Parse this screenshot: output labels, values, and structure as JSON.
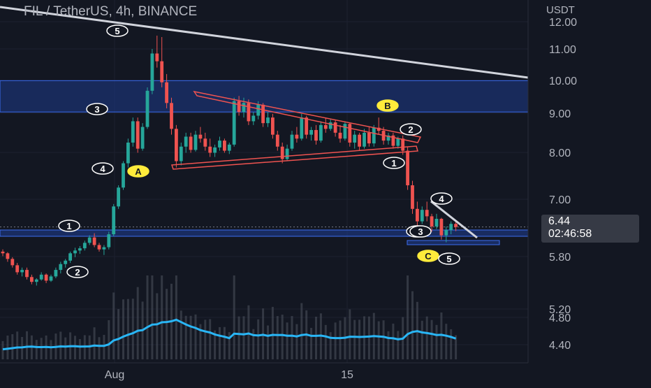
{
  "header": {
    "title": "FIL / TetherUS, 4h, BINANCE",
    "currency": "USDT"
  },
  "price_tag": {
    "price": "6.44",
    "countdown": "02:46:58"
  },
  "colors": {
    "background": "#131722",
    "up": "#26a69a",
    "down": "#ef5350",
    "volume_ma": "#29b6f6",
    "zone": "#1e3a8a",
    "annotation": "#ffffff"
  },
  "chart_data": {
    "type": "candlestick",
    "title": "FIL / TetherUS, 4h, BINANCE",
    "x_tick_labels": [
      "Aug",
      "15"
    ],
    "y_tick_labels": [
      "12.00",
      "11.00",
      "10.00",
      "9.00",
      "8.00",
      "7.00",
      "5.80",
      "5.20",
      "4.80",
      "4.40"
    ],
    "y_scale": "log",
    "last_price": 6.44,
    "resistance_zone": [
      9.1,
      10.0
    ],
    "support_zone": [
      6.2,
      6.32
    ],
    "wave_labels": [
      "1",
      "2",
      "3",
      "4",
      "5",
      "A",
      "3",
      "B",
      "2",
      "1",
      "4",
      "3",
      "C",
      "5"
    ],
    "series": [
      {
        "values": [
          [
            5.98,
            6.02,
            5.9,
            5.95
          ],
          [
            5.95,
            5.97,
            5.8,
            5.85
          ],
          [
            5.85,
            5.88,
            5.7,
            5.74
          ],
          [
            5.74,
            5.78,
            5.58,
            5.62
          ],
          [
            5.62,
            5.7,
            5.55,
            5.66
          ],
          [
            5.66,
            5.7,
            5.5,
            5.54
          ],
          [
            5.54,
            5.58,
            5.42,
            5.46
          ],
          [
            5.46,
            5.52,
            5.4,
            5.5
          ],
          [
            5.5,
            5.62,
            5.48,
            5.58
          ],
          [
            5.58,
            5.6,
            5.44,
            5.48
          ],
          [
            5.48,
            5.58,
            5.46,
            5.55
          ],
          [
            5.55,
            5.7,
            5.52,
            5.66
          ],
          [
            5.66,
            5.8,
            5.6,
            5.76
          ],
          [
            5.76,
            5.85,
            5.7,
            5.82
          ],
          [
            5.82,
            5.98,
            5.78,
            5.95
          ],
          [
            5.95,
            6.05,
            5.88,
            6.0
          ],
          [
            6.0,
            6.08,
            5.94,
            6.04
          ],
          [
            6.04,
            6.18,
            6.0,
            6.14
          ],
          [
            6.14,
            6.28,
            6.1,
            6.24
          ],
          [
            6.24,
            6.32,
            6.06,
            6.1
          ],
          [
            6.1,
            6.14,
            5.98,
            6.02
          ],
          [
            6.02,
            6.1,
            5.92,
            6.06
          ],
          [
            6.06,
            6.35,
            6.02,
            6.3
          ],
          [
            6.3,
            6.9,
            6.26,
            6.85
          ],
          [
            6.85,
            7.3,
            6.8,
            7.25
          ],
          [
            7.25,
            7.85,
            7.2,
            7.8
          ],
          [
            7.8,
            8.4,
            7.7,
            8.3
          ],
          [
            8.3,
            8.95,
            8.2,
            8.85
          ],
          [
            8.85,
            8.95,
            8.05,
            8.15
          ],
          [
            8.15,
            8.8,
            8.1,
            8.7
          ],
          [
            8.7,
            9.8,
            8.65,
            9.7
          ],
          [
            9.7,
            11.0,
            9.6,
            10.85
          ],
          [
            10.85,
            11.45,
            10.4,
            10.6
          ],
          [
            10.6,
            11.4,
            9.8,
            9.95
          ],
          [
            9.95,
            10.2,
            9.2,
            9.35
          ],
          [
            9.35,
            9.5,
            8.5,
            8.65
          ],
          [
            8.65,
            8.75,
            7.7,
            7.85
          ],
          [
            7.85,
            8.3,
            7.75,
            8.2
          ],
          [
            8.2,
            8.55,
            8.05,
            8.45
          ],
          [
            8.45,
            8.55,
            8.05,
            8.12
          ],
          [
            8.12,
            8.6,
            8.08,
            8.5
          ],
          [
            8.5,
            8.7,
            8.3,
            8.4
          ],
          [
            8.4,
            8.55,
            8.1,
            8.2
          ],
          [
            8.2,
            8.4,
            7.95,
            8.05
          ],
          [
            8.05,
            8.25,
            7.95,
            8.18
          ],
          [
            8.18,
            8.45,
            8.1,
            8.35
          ],
          [
            8.35,
            8.4,
            8.05,
            8.1
          ],
          [
            8.1,
            8.3,
            8.02,
            8.25
          ],
          [
            8.25,
            9.5,
            8.2,
            9.4
          ],
          [
            9.4,
            9.55,
            9.0,
            9.1
          ],
          [
            9.1,
            9.5,
            8.95,
            9.35
          ],
          [
            9.35,
            9.45,
            8.75,
            8.85
          ],
          [
            8.85,
            9.1,
            8.75,
            9.0
          ],
          [
            9.0,
            9.4,
            8.9,
            9.3
          ],
          [
            9.3,
            9.35,
            8.7,
            8.8
          ],
          [
            8.8,
            9.1,
            8.7,
            8.95
          ],
          [
            8.95,
            9.05,
            8.4,
            8.5
          ],
          [
            8.5,
            8.6,
            8.1,
            8.2
          ],
          [
            8.2,
            8.3,
            7.8,
            7.9
          ],
          [
            7.9,
            8.25,
            7.85,
            8.15
          ],
          [
            8.15,
            8.6,
            8.1,
            8.5
          ],
          [
            8.5,
            8.7,
            8.3,
            8.4
          ],
          [
            8.4,
            9.05,
            8.35,
            8.95
          ],
          [
            8.95,
            9.0,
            8.4,
            8.5
          ],
          [
            8.5,
            8.7,
            8.35,
            8.62
          ],
          [
            8.62,
            8.75,
            8.25,
            8.35
          ],
          [
            8.35,
            8.85,
            8.3,
            8.75
          ],
          [
            8.75,
            8.95,
            8.55,
            8.65
          ],
          [
            8.65,
            8.9,
            8.6,
            8.82
          ],
          [
            8.82,
            8.88,
            8.45,
            8.55
          ],
          [
            8.55,
            8.75,
            8.3,
            8.4
          ],
          [
            8.4,
            8.85,
            8.35,
            8.78
          ],
          [
            8.78,
            8.8,
            8.2,
            8.3
          ],
          [
            8.3,
            8.6,
            8.15,
            8.5
          ],
          [
            8.5,
            8.55,
            8.1,
            8.2
          ],
          [
            8.2,
            8.65,
            8.15,
            8.55
          ],
          [
            8.55,
            8.7,
            8.2,
            8.28
          ],
          [
            8.28,
            8.75,
            8.2,
            8.68
          ],
          [
            8.68,
            8.95,
            8.5,
            8.6
          ],
          [
            8.6,
            8.7,
            8.25,
            8.35
          ],
          [
            8.35,
            8.55,
            8.25,
            8.48
          ],
          [
            8.48,
            8.55,
            8.15,
            8.22
          ],
          [
            8.22,
            8.45,
            8.15,
            8.4
          ],
          [
            8.4,
            8.48,
            8.0,
            8.1
          ],
          [
            8.1,
            8.2,
            7.2,
            7.3
          ],
          [
            7.3,
            7.4,
            6.7,
            6.8
          ],
          [
            6.8,
            6.95,
            6.4,
            6.55
          ],
          [
            6.55,
            6.85,
            6.5,
            6.78
          ],
          [
            6.78,
            6.95,
            6.55,
            6.65
          ],
          [
            6.65,
            6.7,
            6.35,
            6.45
          ],
          [
            6.45,
            6.7,
            6.4,
            6.6
          ],
          [
            6.6,
            6.62,
            6.2,
            6.28
          ],
          [
            6.28,
            6.45,
            6.15,
            6.38
          ],
          [
            6.38,
            6.55,
            6.3,
            6.5
          ],
          [
            6.5,
            6.55,
            6.36,
            6.44
          ]
        ]
      }
    ]
  }
}
